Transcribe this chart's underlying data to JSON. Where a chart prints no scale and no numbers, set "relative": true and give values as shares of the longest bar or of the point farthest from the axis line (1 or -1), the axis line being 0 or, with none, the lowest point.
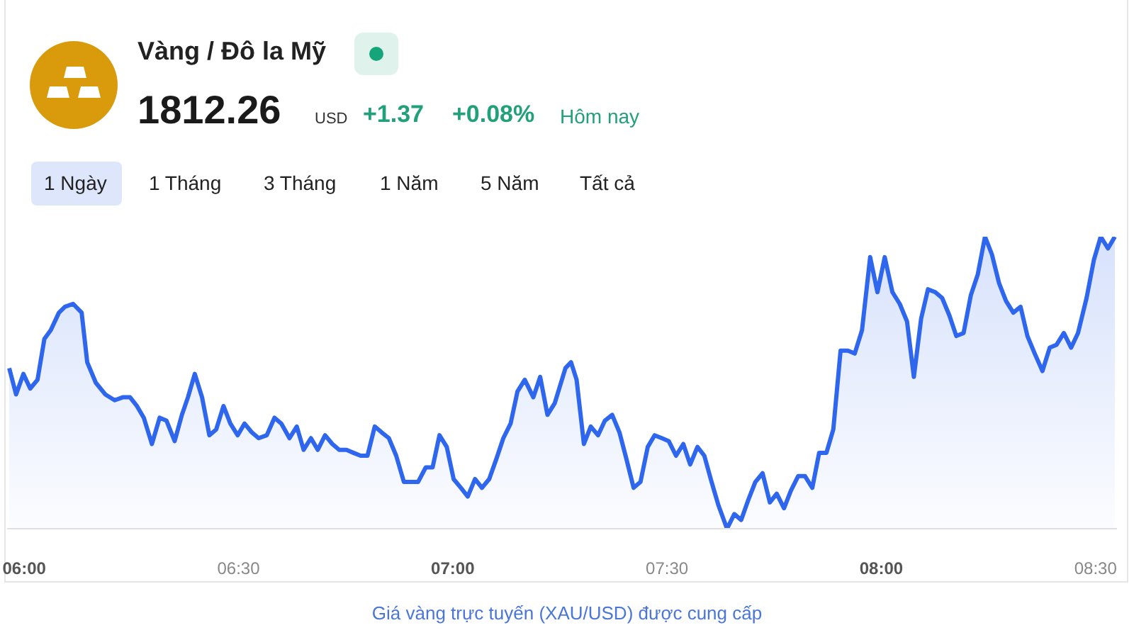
{
  "chart_data": {
    "type": "area",
    "title": "Vàng / Đô la Mỹ",
    "relative": true,
    "annotations": [
      "1812.26",
      "USD",
      "+1.37",
      "+0.08%",
      "Hôm nay",
      "1 Ngày",
      "1 Tháng",
      "3 Tháng",
      "1 Năm",
      "5 Năm",
      "Tất cả",
      "Giá vàng trực tuyến (XAU/USD) được cung cấp"
    ],
    "x": [
      5.965,
      5.981,
      5.998,
      6.014,
      6.031,
      6.047,
      6.062,
      6.081,
      6.095,
      6.114,
      6.134,
      6.147,
      6.167,
      6.189,
      6.211,
      6.23,
      6.247,
      6.263,
      6.279,
      6.298,
      6.316,
      6.332,
      6.351,
      6.368,
      6.382,
      6.398,
      6.415,
      6.432,
      6.448,
      6.465,
      6.481,
      6.498,
      6.514,
      6.531,
      6.547,
      6.566,
      6.584,
      6.6,
      6.619,
      6.636,
      6.652,
      6.669,
      6.685,
      6.702,
      6.719,
      6.735,
      6.752,
      6.768,
      6.785,
      6.801,
      6.818,
      6.834,
      6.851,
      6.868,
      6.886,
      6.903,
      6.919,
      6.937,
      6.953,
      6.969,
      6.986,
      7.002,
      7.019,
      7.035,
      7.052,
      7.068,
      7.085,
      7.102,
      7.118,
      7.135,
      7.151,
      7.168,
      7.188,
      7.204,
      7.221,
      7.238,
      7.263,
      7.276,
      7.289,
      7.306,
      7.322,
      7.339,
      7.355,
      7.372,
      7.389,
      7.405,
      7.422,
      7.438,
      7.455,
      7.471,
      7.488,
      7.504,
      7.521,
      7.538,
      7.554,
      7.571,
      7.587,
      7.604,
      7.62,
      7.64,
      7.657,
      7.673,
      7.69,
      7.706,
      7.723,
      7.74,
      7.756,
      7.773,
      7.789,
      7.806,
      7.822,
      7.839,
      7.855,
      7.872,
      7.888,
      7.905,
      7.922,
      7.938,
      7.955,
      7.974,
      7.991,
      8.008,
      8.026,
      8.043,
      8.06,
      8.076,
      8.093,
      8.109,
      8.126,
      8.142,
      8.159,
      8.175,
      8.192,
      8.209,
      8.225,
      8.242,
      8.258,
      8.275,
      8.291,
      8.308,
      8.325,
      8.341,
      8.358,
      8.376,
      8.393,
      8.409,
      8.426,
      8.443,
      8.459,
      8.479,
      8.496,
      8.512,
      8.529,
      8.545
    ],
    "series": [
      {
        "color": "#2f66ee",
        "values": [
          0.55,
          0.46,
          0.53,
          0.48,
          0.51,
          0.65,
          0.68,
          0.74,
          0.76,
          0.77,
          0.74,
          0.57,
          0.5,
          0.46,
          0.44,
          0.45,
          0.45,
          0.42,
          0.38,
          0.29,
          0.38,
          0.37,
          0.3,
          0.39,
          0.45,
          0.53,
          0.45,
          0.32,
          0.34,
          0.42,
          0.36,
          0.32,
          0.36,
          0.33,
          0.31,
          0.32,
          0.38,
          0.36,
          0.31,
          0.35,
          0.27,
          0.31,
          0.27,
          0.32,
          0.29,
          0.27,
          0.27,
          0.26,
          0.25,
          0.25,
          0.35,
          0.33,
          0.31,
          0.25,
          0.16,
          0.16,
          0.16,
          0.21,
          0.21,
          0.32,
          0.28,
          0.17,
          0.14,
          0.11,
          0.17,
          0.14,
          0.17,
          0.24,
          0.31,
          0.36,
          0.47,
          0.51,
          0.45,
          0.52,
          0.39,
          0.43,
          0.55,
          0.57,
          0.51,
          0.29,
          0.35,
          0.32,
          0.37,
          0.39,
          0.33,
          0.24,
          0.14,
          0.16,
          0.28,
          0.32,
          0.31,
          0.3,
          0.25,
          0.29,
          0.22,
          0.28,
          0.25,
          0.16,
          0.08,
          0.0,
          0.05,
          0.03,
          0.1,
          0.16,
          0.19,
          0.09,
          0.12,
          0.07,
          0.13,
          0.18,
          0.18,
          0.14,
          0.26,
          0.26,
          0.34,
          0.61,
          0.61,
          0.6,
          0.68,
          0.93,
          0.81,
          0.93,
          0.81,
          0.77,
          0.71,
          0.52,
          0.72,
          0.82,
          0.81,
          0.79,
          0.73,
          0.66,
          0.67,
          0.8,
          0.87,
          1.0,
          0.94,
          0.84,
          0.78,
          0.74,
          0.76,
          0.66,
          0.6,
          0.54,
          0.62,
          0.63,
          0.67,
          0.62,
          0.67,
          0.79,
          0.92,
          1.0,
          0.96,
          1.0
        ]
      }
    ],
    "xlim": [
      5.96,
      8.55
    ],
    "xticks": [
      {
        "value": 6,
        "label": "06:00"
      },
      {
        "value": 6.5,
        "label": "06:30"
      },
      {
        "value": 7,
        "label": "07:00"
      },
      {
        "value": 7.5,
        "label": "07:30"
      },
      {
        "value": 8,
        "label": "08:00"
      },
      {
        "value": 8.5,
        "label": "08:30"
      }
    ]
  }
}
